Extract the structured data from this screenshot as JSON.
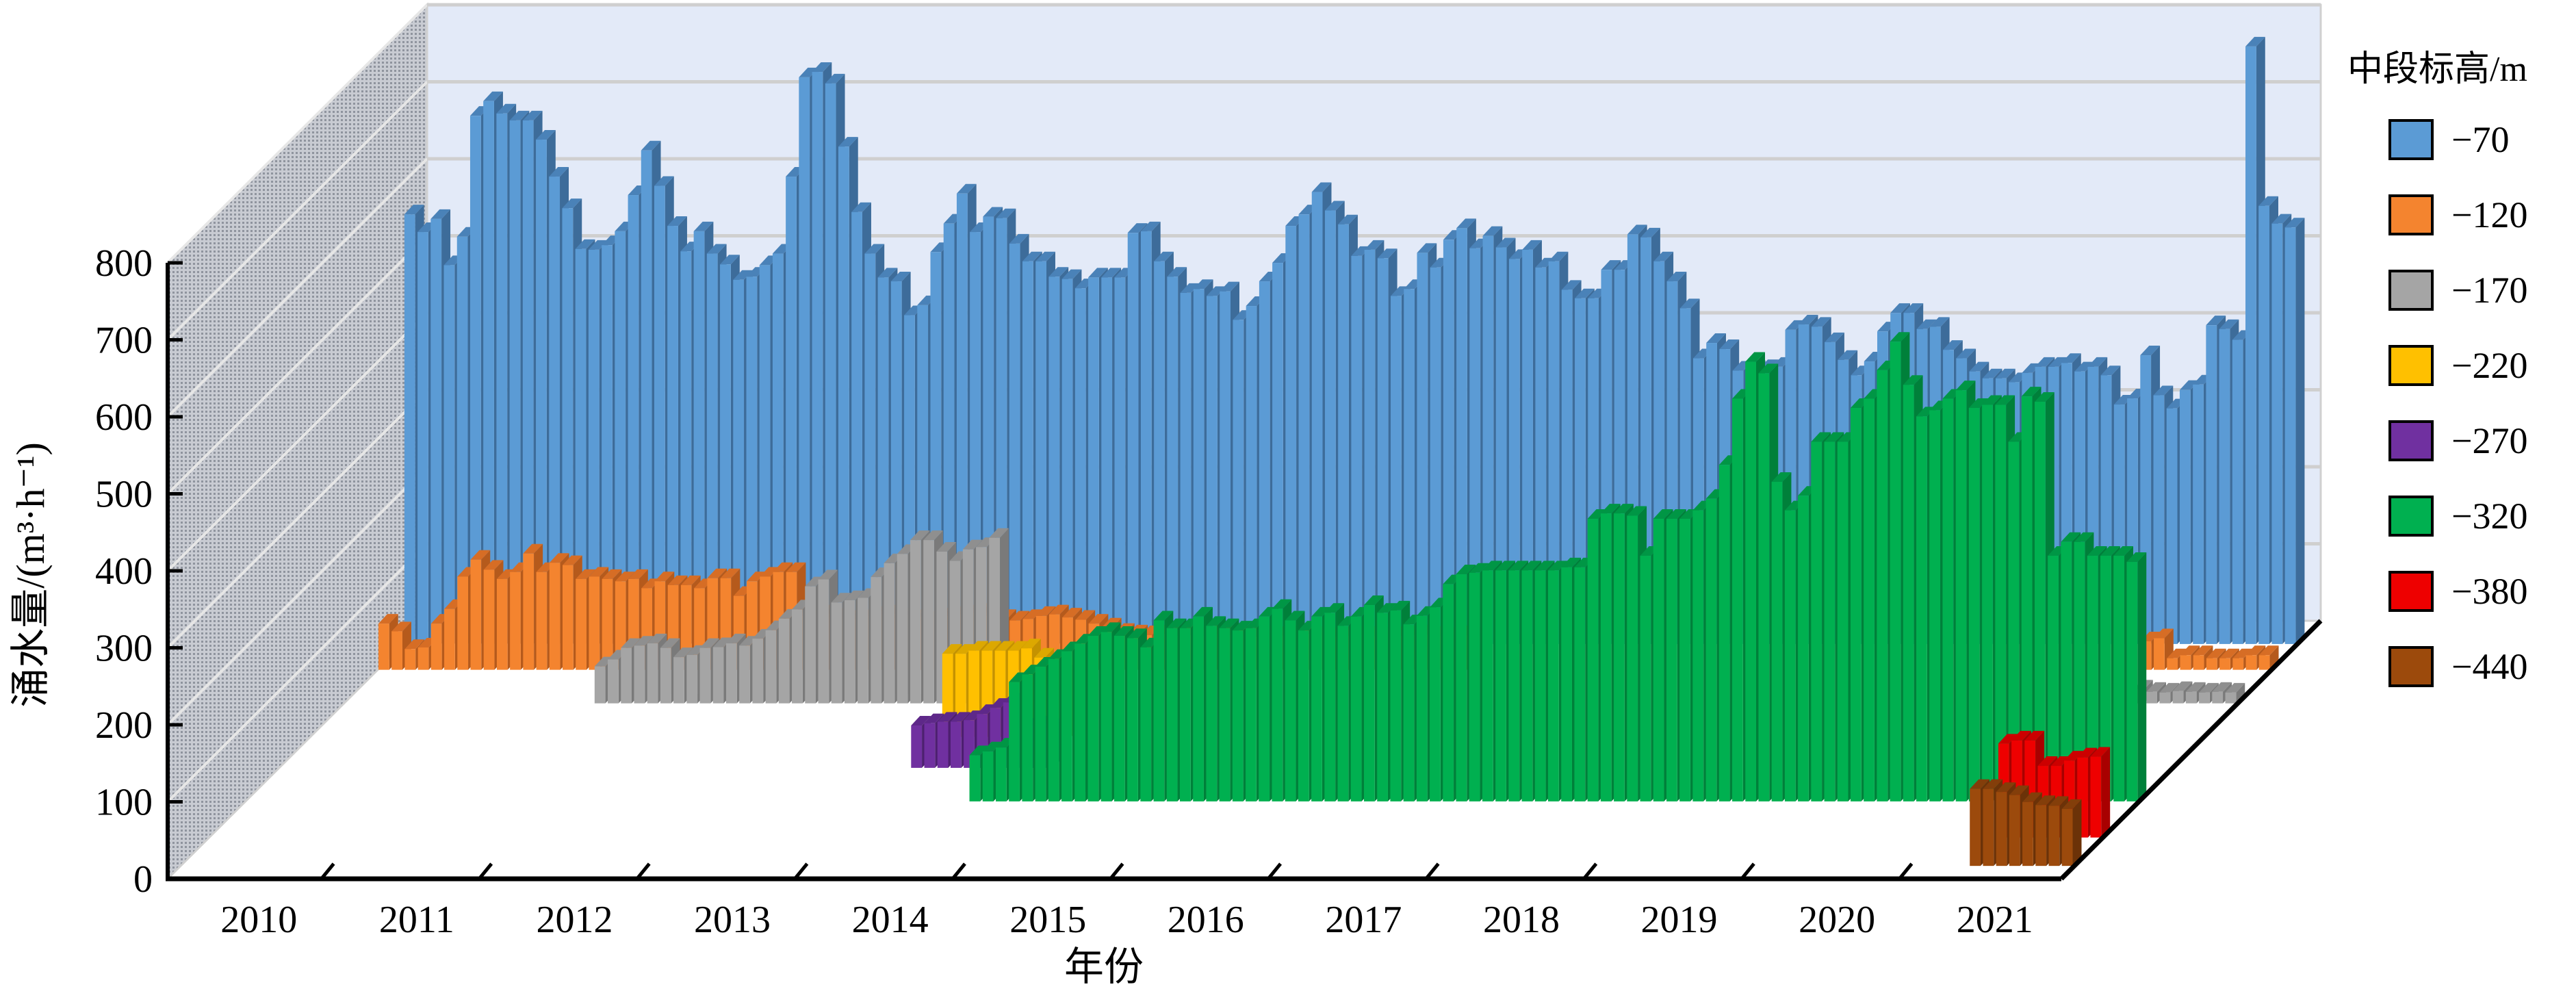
{
  "chart_data": {
    "type": "bar",
    "subtype": "3d-column",
    "title": "",
    "xlabel": "年份",
    "ylabel": "涌水量/(m³·h⁻¹)",
    "ylim": [
      0,
      800
    ],
    "yticks": [
      "0",
      "100",
      "200",
      "300",
      "400",
      "500",
      "600",
      "700",
      "800"
    ],
    "categories": [
      "2010",
      "2011",
      "2012",
      "2013",
      "2014",
      "2015",
      "2016",
      "2017",
      "2018",
      "2019",
      "2020",
      "2021"
    ],
    "x_resolution": "monthly",
    "grid": true,
    "legend_title": "中段标高/m",
    "legend_position": "right",
    "series": [
      {
        "name": "−70",
        "color": "#5b9bd5",
        "side": "#3d6c9a",
        "top": "#4a82b8",
        "segments": [
          {
            "start": "2010-01",
            "values": [
              558,
              535,
              552,
              492,
              529,
              686,
              705,
              689,
              680,
              680,
              655,
              607,
              566,
              513,
              512,
              518,
              536,
              583,
              641,
              595,
              543,
              510,
              536,
              507,
              493,
              473,
              477,
              492,
              507,
              607,
              736,
              743,
              728,
              646,
              561,
              507,
              476,
              471,
              427,
              440,
              509,
              546,
              585,
              535,
              555,
              553,
              520,
              497,
              497,
              477,
              474,
              462,
              476,
              476,
              476,
              534,
              536,
              497,
              477,
              456,
              461,
              452,
              458,
              421,
              439,
              471,
              495,
              543,
              558,
              587,
              563,
              545,
              504,
              512,
              501,
              452,
              461,
              508,
              489,
              525,
              540,
              514,
              530,
              515,
              500,
              512,
              489,
              497,
              460,
              449,
              449,
              486,
              486,
              532,
              528,
              497,
              471,
              436,
              371,
              391,
              383,
              355,
              356,
              357,
              360,
              408,
              415,
              412,
              392,
              369,
              349,
              367,
              406,
              430,
              430,
              409,
              412,
              382,
              371,
              354,
              345,
              345,
              340,
              352,
              360,
              360,
              365,
              354,
              360,
              349,
              311,
              319,
              375,
              323,
              306,
              330,
              337,
              414,
              409,
              395,
              776,
              569,
              546,
              541
            ]
          }
        ]
      },
      {
        "name": "−120",
        "color": "#f4842f",
        "side": "#b55a1c",
        "top": "#d66d25",
        "segments": [
          {
            "start": "2010-01",
            "values": [
              60,
              50,
              27,
              29,
              60,
              79,
              121,
              143,
              130,
              118,
              127,
              151,
              127,
              139,
              136,
              118,
              121,
              118,
              115,
              118,
              106,
              115,
              110,
              110,
              106,
              119,
              119,
              96,
              115,
              121,
              127,
              127
            ]
          },
          {
            "start": "2012-09",
            "values": [
              70,
              72,
              68,
              65,
              66,
              70,
              72,
              68,
              66,
              64,
              68,
              70,
              72,
              74,
              70,
              66,
              64,
              66,
              70,
              72,
              68,
              65,
              60,
              55,
              48,
              46,
              45,
              46,
              44,
              45,
              44,
              46,
              45,
              44,
              43,
              45,
              44,
              45,
              46,
              44,
              43,
              44,
              45,
              44,
              43,
              44,
              45,
              46,
              44,
              43,
              45,
              44
            ]
          },
          {
            "start": "2021-03",
            "values": [
              37,
              41,
              15,
              19,
              19,
              15,
              15,
              15,
              19,
              19
            ]
          }
        ]
      },
      {
        "name": "−170",
        "color": "#a5a5a5",
        "side": "#7a7a7a",
        "top": "#8f8f8f",
        "segments": [
          {
            "start": "2011-08",
            "values": [
              48,
              57,
              72,
              75,
              78,
              72,
              60,
              63,
              72,
              73,
              78,
              75,
              84,
              95,
              110,
              122,
              152,
              161,
              131,
              134,
              137,
              164,
              182,
              194,
              212,
              212,
              197,
              185,
              200,
              203,
              215
            ]
          },
          {
            "start": "2021-05",
            "values": [
              18,
              15,
              14,
              16,
              15,
              14,
              15,
              14
            ]
          }
        ]
      },
      {
        "name": "−220",
        "color": "#ffc000",
        "side": "#c49200",
        "top": "#dca800",
        "segments": [
          {
            "start": "2014-01",
            "values": [
              108,
              108,
              112,
              112,
              112,
              112,
              115,
              103,
              98,
              92
            ]
          }
        ]
      },
      {
        "name": "−270",
        "color": "#7030a0",
        "side": "#4d1f70",
        "top": "#5e2889",
        "segments": [
          {
            "start": "2014-01",
            "values": [
              55,
              58,
              60,
              60,
              62,
              70,
              78,
              85,
              52,
              55,
              52
            ]
          }
        ]
      },
      {
        "name": "−320",
        "color": "#00b050",
        "side": "#00803a",
        "top": "#009645",
        "segments": [
          {
            "start": "2014-08",
            "values": [
              60,
              65,
              70,
              155,
              165,
              175,
              185,
              195,
              205,
              215,
              220,
              215,
              212,
              200,
              235,
              225,
              225,
              240,
              228,
              225,
              222,
              225,
              240,
              250,
              235,
              222,
              240,
              245,
              228,
              240,
              255,
              245,
              248,
              230,
              241,
              252,
              282,
              295,
              297,
              300,
              300,
              300,
              300,
              300,
              300,
              304,
              304,
              367,
              374,
              374,
              371,
              319,
              367,
              367,
              367,
              378,
              393,
              437,
              523,
              571,
              556,
              415,
              378,
              397,
              467,
              467,
              467,
              511,
              523,
              560,
              597,
              541,
              500,
              508,
              523,
              534,
              511,
              515,
              515,
              467,
              526,
              519,
              319,
              337,
              337,
              319,
              319,
              319,
              311
            ]
          }
        ]
      },
      {
        "name": "−380",
        "color": "#ee0000",
        "side": "#a80000",
        "top": "#cc0000",
        "segments": [
          {
            "start": "2021-05",
            "values": [
              122,
              126,
              126,
              93,
              93,
              100,
              104,
              105
            ]
          }
        ]
      },
      {
        "name": "−440",
        "color": "#9c4a0c",
        "side": "#6b3208",
        "top": "#833e0a",
        "segments": [
          {
            "start": "2021-05",
            "values": [
              100,
              100,
              96,
              92,
              83,
              79,
              78,
              74
            ]
          }
        ]
      }
    ]
  }
}
